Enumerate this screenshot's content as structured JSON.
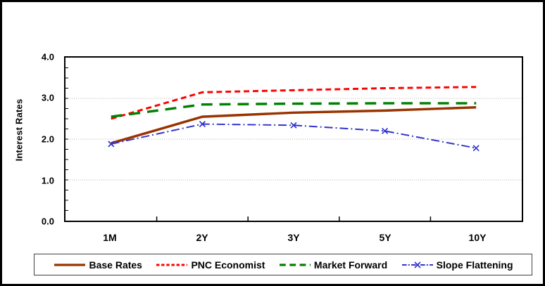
{
  "chart": {
    "y_axis_title": "Interest Rates",
    "y_ticks": [
      "4.0",
      "3.0",
      "2.0",
      "1.0",
      "0.0"
    ],
    "x_labels": [
      "1M",
      "2Y",
      "3Y",
      "5Y",
      "10Y"
    ]
  },
  "chart_data": {
    "type": "line",
    "categories": [
      "1M",
      "2Y",
      "3Y",
      "5Y",
      "10Y"
    ],
    "series": [
      {
        "name": "Base Rates",
        "values": [
          1.9,
          2.55,
          2.65,
          2.7,
          2.78
        ],
        "color": "#993300",
        "dash": "",
        "width": 3.5,
        "marker": "none"
      },
      {
        "name": "PNC Economist",
        "values": [
          2.5,
          3.15,
          3.2,
          3.25,
          3.28
        ],
        "color": "#FF0000",
        "dash": "8 5",
        "width": 3,
        "marker": "none"
      },
      {
        "name": "Market Forward",
        "values": [
          2.55,
          2.85,
          2.87,
          2.88,
          2.88
        ],
        "color": "#008000",
        "dash": "16 10",
        "width": 3.5,
        "marker": "none"
      },
      {
        "name": "Slope Flattening",
        "values": [
          1.88,
          2.37,
          2.34,
          2.2,
          1.78
        ],
        "color": "#3333CC",
        "dash": "12 4 2 4",
        "width": 2,
        "marker": "x"
      }
    ],
    "title": "",
    "xlabel": "",
    "ylabel": "Interest Rates",
    "ylim": [
      0,
      4
    ],
    "y_major_step": 1.0,
    "y_minor_step": 0.25,
    "gridlines": [
      1,
      2,
      3
    ],
    "grid": true,
    "legend_position": "bottom",
    "grid_color": "#b0b0b0"
  }
}
